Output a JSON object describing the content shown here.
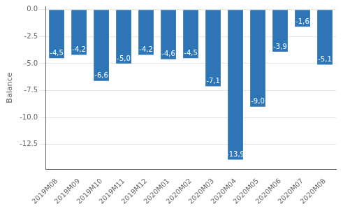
{
  "chart_data": {
    "type": "bar",
    "categories": [
      "2019M08",
      "2019M09",
      "2019M10",
      "2019M11",
      "2019M12",
      "2020M01",
      "2020M02",
      "2020M03",
      "2020M04",
      "2020M05",
      "2020M06",
      "2020M07",
      "2020M08"
    ],
    "values": [
      -4.5,
      -4.2,
      -6.6,
      -5.0,
      -4.2,
      -4.6,
      -4.5,
      -7.1,
      -13.9,
      -9.0,
      -3.9,
      -1.6,
      -5.1
    ],
    "value_labels": [
      "-4,5",
      "-4,2",
      "-6,6",
      "-5,0",
      "-4,2",
      "-4,6",
      "-4,5",
      "-7,1",
      "-13,9",
      "-9,0",
      "-3,9",
      "-1,6",
      "-5,1"
    ],
    "data_labels": true,
    "color": "#2e75b6",
    "ylabel": "Balance",
    "ylim": [
      -14.8,
      0.3
    ],
    "yticks": [
      {
        "value": 0,
        "label": "0.0"
      },
      -2.5,
      {
        "value": -5,
        "label": "-5.0"
      },
      -7.5,
      {
        "value": -10,
        "label": "-10.0"
      },
      -12.5
    ],
    "grid": true
  }
}
